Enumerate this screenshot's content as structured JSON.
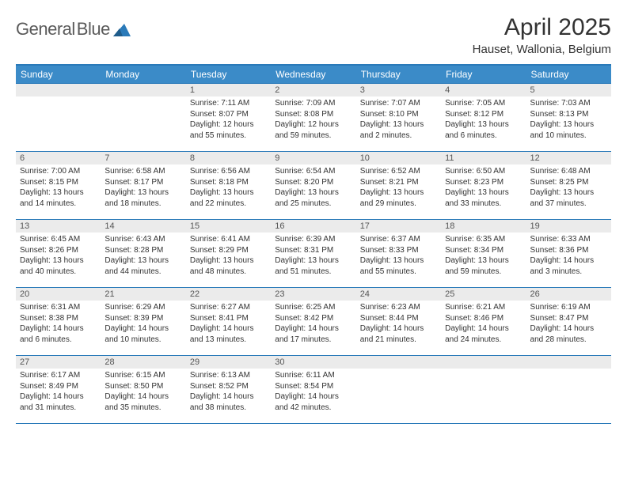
{
  "logo": {
    "text1": "General",
    "text2": "Blue"
  },
  "title": "April 2025",
  "location": "Hauset, Wallonia, Belgium",
  "colors": {
    "header_bg": "#3b8bc8",
    "border": "#2a7ab9",
    "daynum_bg": "#ebebeb",
    "text": "#333333",
    "logo_grey": "#5a5a5a"
  },
  "weekdays": [
    "Sunday",
    "Monday",
    "Tuesday",
    "Wednesday",
    "Thursday",
    "Friday",
    "Saturday"
  ],
  "weeks": [
    [
      null,
      null,
      {
        "n": "1",
        "sr": "7:11 AM",
        "ss": "8:07 PM",
        "dl": "12 hours and 55 minutes."
      },
      {
        "n": "2",
        "sr": "7:09 AM",
        "ss": "8:08 PM",
        "dl": "12 hours and 59 minutes."
      },
      {
        "n": "3",
        "sr": "7:07 AM",
        "ss": "8:10 PM",
        "dl": "13 hours and 2 minutes."
      },
      {
        "n": "4",
        "sr": "7:05 AM",
        "ss": "8:12 PM",
        "dl": "13 hours and 6 minutes."
      },
      {
        "n": "5",
        "sr": "7:03 AM",
        "ss": "8:13 PM",
        "dl": "13 hours and 10 minutes."
      }
    ],
    [
      {
        "n": "6",
        "sr": "7:00 AM",
        "ss": "8:15 PM",
        "dl": "13 hours and 14 minutes."
      },
      {
        "n": "7",
        "sr": "6:58 AM",
        "ss": "8:17 PM",
        "dl": "13 hours and 18 minutes."
      },
      {
        "n": "8",
        "sr": "6:56 AM",
        "ss": "8:18 PM",
        "dl": "13 hours and 22 minutes."
      },
      {
        "n": "9",
        "sr": "6:54 AM",
        "ss": "8:20 PM",
        "dl": "13 hours and 25 minutes."
      },
      {
        "n": "10",
        "sr": "6:52 AM",
        "ss": "8:21 PM",
        "dl": "13 hours and 29 minutes."
      },
      {
        "n": "11",
        "sr": "6:50 AM",
        "ss": "8:23 PM",
        "dl": "13 hours and 33 minutes."
      },
      {
        "n": "12",
        "sr": "6:48 AM",
        "ss": "8:25 PM",
        "dl": "13 hours and 37 minutes."
      }
    ],
    [
      {
        "n": "13",
        "sr": "6:45 AM",
        "ss": "8:26 PM",
        "dl": "13 hours and 40 minutes."
      },
      {
        "n": "14",
        "sr": "6:43 AM",
        "ss": "8:28 PM",
        "dl": "13 hours and 44 minutes."
      },
      {
        "n": "15",
        "sr": "6:41 AM",
        "ss": "8:29 PM",
        "dl": "13 hours and 48 minutes."
      },
      {
        "n": "16",
        "sr": "6:39 AM",
        "ss": "8:31 PM",
        "dl": "13 hours and 51 minutes."
      },
      {
        "n": "17",
        "sr": "6:37 AM",
        "ss": "8:33 PM",
        "dl": "13 hours and 55 minutes."
      },
      {
        "n": "18",
        "sr": "6:35 AM",
        "ss": "8:34 PM",
        "dl": "13 hours and 59 minutes."
      },
      {
        "n": "19",
        "sr": "6:33 AM",
        "ss": "8:36 PM",
        "dl": "14 hours and 3 minutes."
      }
    ],
    [
      {
        "n": "20",
        "sr": "6:31 AM",
        "ss": "8:38 PM",
        "dl": "14 hours and 6 minutes."
      },
      {
        "n": "21",
        "sr": "6:29 AM",
        "ss": "8:39 PM",
        "dl": "14 hours and 10 minutes."
      },
      {
        "n": "22",
        "sr": "6:27 AM",
        "ss": "8:41 PM",
        "dl": "14 hours and 13 minutes."
      },
      {
        "n": "23",
        "sr": "6:25 AM",
        "ss": "8:42 PM",
        "dl": "14 hours and 17 minutes."
      },
      {
        "n": "24",
        "sr": "6:23 AM",
        "ss": "8:44 PM",
        "dl": "14 hours and 21 minutes."
      },
      {
        "n": "25",
        "sr": "6:21 AM",
        "ss": "8:46 PM",
        "dl": "14 hours and 24 minutes."
      },
      {
        "n": "26",
        "sr": "6:19 AM",
        "ss": "8:47 PM",
        "dl": "14 hours and 28 minutes."
      }
    ],
    [
      {
        "n": "27",
        "sr": "6:17 AM",
        "ss": "8:49 PM",
        "dl": "14 hours and 31 minutes."
      },
      {
        "n": "28",
        "sr": "6:15 AM",
        "ss": "8:50 PM",
        "dl": "14 hours and 35 minutes."
      },
      {
        "n": "29",
        "sr": "6:13 AM",
        "ss": "8:52 PM",
        "dl": "14 hours and 38 minutes."
      },
      {
        "n": "30",
        "sr": "6:11 AM",
        "ss": "8:54 PM",
        "dl": "14 hours and 42 minutes."
      },
      null,
      null,
      null
    ]
  ],
  "labels": {
    "sunrise": "Sunrise:",
    "sunset": "Sunset:",
    "daylight": "Daylight:"
  }
}
